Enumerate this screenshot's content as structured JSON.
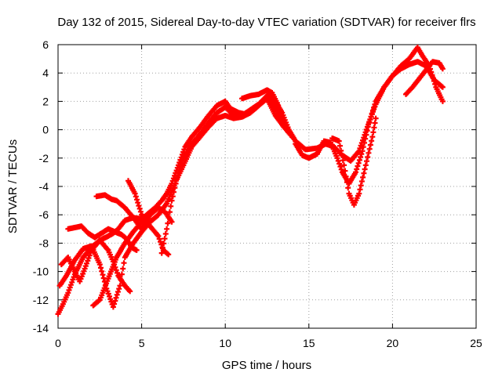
{
  "chart_data": {
    "type": "scatter",
    "title": "Day 132 of 2015, Sidereal Day-to-day VTEC variation (SDTVAR) for receiver flrs",
    "xlabel": "GPS time / hours",
    "ylabel": "SDTVAR / TECUs",
    "xlim": [
      0,
      25
    ],
    "ylim": [
      -14,
      6
    ],
    "xticks": [
      0,
      5,
      10,
      15,
      20,
      25
    ],
    "yticks": [
      -14,
      -12,
      -10,
      -8,
      -6,
      -4,
      -2,
      0,
      2,
      4,
      6
    ],
    "grid": true,
    "marker": "plus",
    "color": "#ff0000",
    "series": [
      {
        "points": [
          [
            0,
            -13
          ],
          [
            0.3,
            -12.3
          ],
          [
            0.6,
            -11.5
          ],
          [
            1.0,
            -10.2
          ],
          [
            1.5,
            -9.0
          ],
          [
            2.0,
            -8.3
          ],
          [
            2.5,
            -7.8
          ],
          [
            3.0,
            -7.5
          ],
          [
            3.3,
            -7.3
          ],
          [
            3.6,
            -7.0
          ],
          [
            4.0,
            -6.4
          ],
          [
            4.5,
            -6.2
          ],
          [
            5.0,
            -6.3
          ],
          [
            5.3,
            -6.0
          ],
          [
            5.8,
            -5.5
          ],
          [
            6.2,
            -5.0
          ],
          [
            6.5,
            -4.5
          ],
          [
            6.8,
            -3.8
          ],
          [
            7.2,
            -2.5
          ],
          [
            7.6,
            -1.2
          ],
          [
            8.0,
            -0.5
          ],
          [
            8.5,
            0.2
          ],
          [
            9.0,
            1.0
          ],
          [
            9.5,
            1.7
          ],
          [
            10.0,
            2.0
          ],
          [
            10.3,
            1.5
          ],
          [
            10.8,
            1.2
          ],
          [
            11.2,
            1.1
          ],
          [
            11.8,
            1.5
          ],
          [
            12.2,
            2.0
          ],
          [
            12.6,
            2.5
          ],
          [
            13.0,
            2.0
          ],
          [
            13.4,
            1.2
          ],
          [
            13.8,
            0.0
          ],
          [
            14.2,
            -0.8
          ],
          [
            14.8,
            -1.4
          ],
          [
            15.5,
            -1.3
          ],
          [
            16.0,
            -1.0
          ],
          [
            16.5,
            -1.2
          ],
          [
            17.0,
            -1.8
          ],
          [
            17.5,
            -2.2
          ],
          [
            18.0,
            -1.5
          ],
          [
            18.5,
            0.2
          ],
          [
            19.0,
            1.8
          ],
          [
            19.5,
            3.0
          ],
          [
            20.0,
            3.8
          ],
          [
            20.5,
            4.3
          ],
          [
            21.0,
            4.6
          ],
          [
            21.5,
            4.8
          ],
          [
            22.0,
            4.5
          ],
          [
            22.5,
            3.5
          ],
          [
            23.0,
            3.0
          ]
        ]
      },
      {
        "points": [
          [
            0.1,
            -11.0
          ],
          [
            0.5,
            -10.3
          ],
          [
            1.0,
            -9.2
          ],
          [
            1.5,
            -8.4
          ],
          [
            2.0,
            -8.2
          ],
          [
            2.5,
            -9.5
          ],
          [
            2.9,
            -11.2
          ],
          [
            3.3,
            -12.5
          ],
          [
            3.7,
            -11.0
          ],
          [
            4.0,
            -9.0
          ],
          [
            4.5,
            -8.0
          ],
          [
            5.0,
            -7.2
          ],
          [
            5.5,
            -6.5
          ],
          [
            6.0,
            -6.0
          ],
          [
            6.5,
            -5.2
          ],
          [
            7.0,
            -3.8
          ],
          [
            7.5,
            -2.0
          ],
          [
            8.0,
            -1.0
          ],
          [
            8.5,
            -0.3
          ],
          [
            9.0,
            0.5
          ],
          [
            9.5,
            1.2
          ],
          [
            10.0,
            1.6
          ],
          [
            10.5,
            1.0
          ],
          [
            11.0,
            1.0
          ],
          [
            11.5,
            1.4
          ],
          [
            12.0,
            1.8
          ],
          [
            12.5,
            2.4
          ],
          [
            13.0,
            1.5
          ],
          [
            13.5,
            0.5
          ],
          [
            14.0,
            -0.5
          ]
        ]
      },
      {
        "points": [
          [
            0.2,
            -9.5
          ],
          [
            0.6,
            -9.0
          ],
          [
            1.0,
            -10.0
          ],
          [
            1.3,
            -10.7
          ],
          [
            1.6,
            -9.8
          ],
          [
            2.0,
            -8.5
          ],
          [
            2.5,
            -7.8
          ],
          [
            3.0,
            -8.5
          ],
          [
            3.3,
            -9.3
          ],
          [
            3.6,
            -10.3
          ],
          [
            4.0,
            -11.0
          ],
          [
            4.3,
            -11.4
          ]
        ]
      },
      {
        "points": [
          [
            0.6,
            -7.0
          ],
          [
            1.0,
            -6.9
          ],
          [
            1.4,
            -6.8
          ],
          [
            1.8,
            -7.3
          ],
          [
            2.2,
            -7.6
          ],
          [
            2.6,
            -7.3
          ],
          [
            3.0,
            -7.0
          ],
          [
            3.4,
            -7.2
          ],
          [
            3.8,
            -7.4
          ],
          [
            4.1,
            -7.7
          ],
          [
            4.4,
            -8.3
          ],
          [
            4.7,
            -8.5
          ]
        ]
      },
      {
        "points": [
          [
            2.1,
            -12.4
          ],
          [
            2.5,
            -12.0
          ],
          [
            3.0,
            -10.5
          ],
          [
            3.5,
            -9.0
          ],
          [
            4.0,
            -8.0
          ],
          [
            4.5,
            -7.2
          ],
          [
            5.0,
            -6.5
          ],
          [
            5.3,
            -6.2
          ]
        ]
      },
      {
        "points": [
          [
            2.3,
            -4.7
          ],
          [
            2.8,
            -4.6
          ],
          [
            3.2,
            -4.9
          ],
          [
            3.5,
            -5.0
          ],
          [
            4.0,
            -5.5
          ],
          [
            4.5,
            -6.2
          ],
          [
            5.0,
            -7.0
          ],
          [
            5.5,
            -6.0
          ],
          [
            6.0,
            -5.5
          ],
          [
            6.4,
            -5.8
          ],
          [
            6.8,
            -6.5
          ]
        ]
      },
      {
        "points": [
          [
            4.2,
            -3.6
          ],
          [
            4.6,
            -4.5
          ],
          [
            5.0,
            -6.0
          ],
          [
            5.5,
            -6.8
          ],
          [
            6.0,
            -7.5
          ],
          [
            6.3,
            -8.5
          ],
          [
            6.6,
            -8.8
          ]
        ]
      },
      {
        "points": [
          [
            6.2,
            -8.7
          ],
          [
            6.5,
            -7.0
          ],
          [
            6.8,
            -5.0
          ],
          [
            7.1,
            -3.5
          ],
          [
            7.5,
            -2.5
          ],
          [
            8.0,
            -1.2
          ],
          [
            8.5,
            -0.5
          ],
          [
            9.0,
            0.2
          ],
          [
            9.5,
            0.8
          ],
          [
            10.0,
            1.0
          ],
          [
            10.5,
            0.8
          ],
          [
            11.0,
            0.9
          ],
          [
            11.5,
            1.2
          ],
          [
            12.0,
            1.7
          ],
          [
            12.5,
            2.2
          ],
          [
            13.0,
            1.0
          ],
          [
            13.5,
            0.2
          ],
          [
            14.0,
            -0.5
          ]
        ]
      },
      {
        "points": [
          [
            14.2,
            -1.0
          ],
          [
            14.6,
            -1.8
          ],
          [
            15.0,
            -2.0
          ],
          [
            15.5,
            -1.7
          ],
          [
            15.9,
            -0.8
          ],
          [
            16.3,
            -0.9
          ],
          [
            16.7,
            -2.0
          ],
          [
            17.0,
            -3.0
          ],
          [
            17.4,
            -3.8
          ],
          [
            17.8,
            -3.0
          ],
          [
            18.2,
            -1.5
          ],
          [
            18.6,
            0.5
          ],
          [
            19.0,
            2.0
          ],
          [
            19.5,
            3.0
          ],
          [
            20.0,
            3.8
          ],
          [
            20.5,
            4.5
          ],
          [
            21.0,
            5.0
          ],
          [
            21.5,
            5.8
          ],
          [
            21.8,
            5.2
          ],
          [
            22.2,
            4.5
          ],
          [
            22.6,
            3.0
          ],
          [
            23.0,
            2.0
          ]
        ]
      },
      {
        "points": [
          [
            16.4,
            -0.6
          ],
          [
            16.8,
            -0.8
          ],
          [
            17.1,
            -2.5
          ],
          [
            17.4,
            -4.5
          ],
          [
            17.7,
            -5.3
          ],
          [
            18.0,
            -4.5
          ],
          [
            18.4,
            -2.5
          ],
          [
            18.8,
            -0.5
          ],
          [
            19.0,
            0.8
          ]
        ]
      },
      {
        "points": [
          [
            20.8,
            2.5
          ],
          [
            21.2,
            3.0
          ],
          [
            21.6,
            3.6
          ],
          [
            22.0,
            4.2
          ],
          [
            22.4,
            4.8
          ],
          [
            22.8,
            4.7
          ],
          [
            23.0,
            4.3
          ]
        ]
      },
      {
        "points": [
          [
            11.0,
            2.2
          ],
          [
            11.5,
            2.4
          ],
          [
            12.0,
            2.5
          ],
          [
            12.5,
            2.8
          ],
          [
            12.8,
            2.6
          ],
          [
            13.1,
            1.9
          ],
          [
            13.4,
            1.0
          ]
        ]
      }
    ]
  }
}
